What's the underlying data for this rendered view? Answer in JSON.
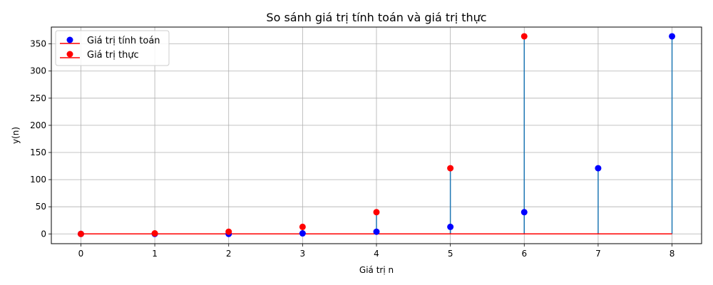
{
  "chart_data": {
    "type": "stem",
    "title": "So sánh giá trị tính toán và giá trị thực",
    "xlabel": "Giá trị n",
    "ylabel": "y(n)",
    "xlim": [
      -0.4,
      8.4
    ],
    "ylim": [
      -18,
      381
    ],
    "xticks": [
      0,
      1,
      2,
      3,
      4,
      5,
      6,
      7,
      8
    ],
    "yticks": [
      0,
      50,
      100,
      150,
      200,
      250,
      300,
      350
    ],
    "grid": true,
    "legend_position": "top-left",
    "colors": {
      "stem": "#1f77b4",
      "baseline": "#ff0000"
    },
    "series": [
      {
        "name": "Giá trị tính toán",
        "color": "#0000ff",
        "x": [
          0,
          1,
          2,
          3,
          4,
          5,
          6,
          7,
          8
        ],
        "values": [
          0,
          0,
          0,
          1,
          4,
          13,
          40,
          121,
          364
        ]
      },
      {
        "name": "Giá trị thực",
        "color": "#ff0000",
        "x": [
          0,
          1,
          2,
          3,
          4,
          5,
          6
        ],
        "values": [
          0,
          1,
          4,
          13,
          40,
          121,
          364
        ]
      }
    ]
  }
}
